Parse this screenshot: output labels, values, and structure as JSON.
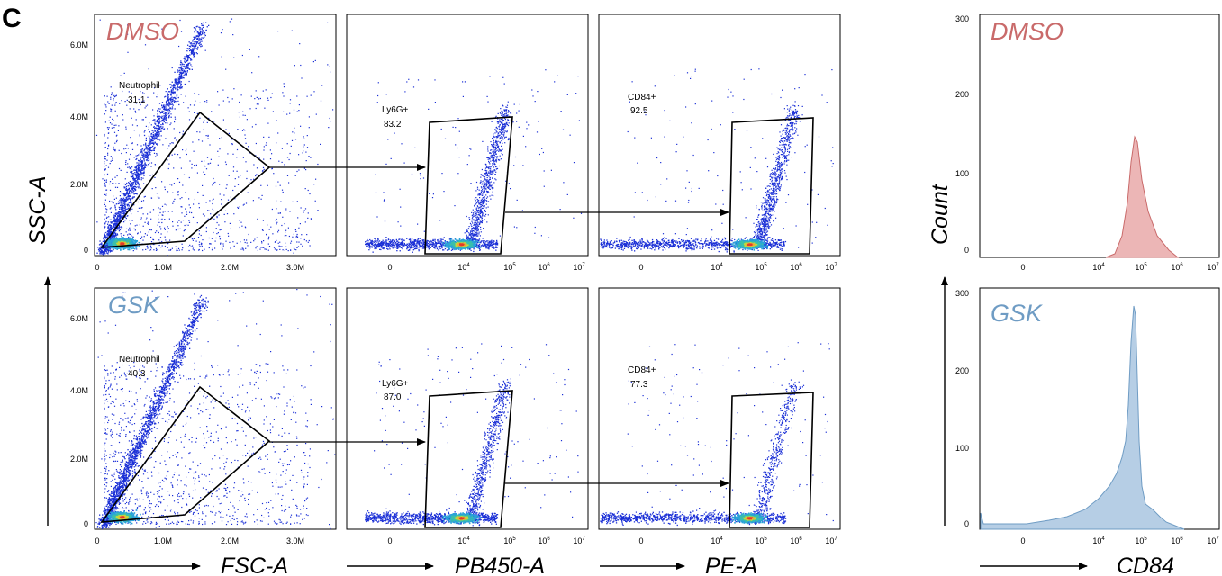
{
  "panel_label": "C",
  "colors": {
    "dmso": "#c96a6a",
    "gsk": "#6f9cc4",
    "dmso_fill": "#e7a4a4",
    "gsk_fill": "#a9c6e0",
    "dot_sparse": "#1a2fd6"
  },
  "rows": [
    {
      "condition": "DMSO",
      "neutrophil_gate": {
        "name": "Neutrophil",
        "value": "31.1"
      },
      "ly6g_gate": {
        "name": "Ly6G+",
        "value": "83.2"
      },
      "cd84_gate": {
        "name": "CD84+",
        "value": "92.5"
      }
    },
    {
      "condition": "GSK",
      "neutrophil_gate": {
        "name": "Neutrophil",
        "value": "40.3"
      },
      "ly6g_gate": {
        "name": "Ly6G+",
        "value": "87.0"
      },
      "cd84_gate": {
        "name": "CD84+",
        "value": "77.3"
      }
    }
  ],
  "axes": {
    "fsc_label": "FSC-A",
    "ssc_label": "SSC-A",
    "pb450_label": "PB450-A",
    "pe_label": "PE-A",
    "count_label": "Count",
    "cd84_label": "CD84",
    "fsc_ticks": [
      "0",
      "1.0M",
      "2.0M",
      "3.0M"
    ],
    "ssc_ticks": [
      "0",
      "2.0M",
      "4.0M",
      "6.0M"
    ],
    "log_ticks": [
      {
        "base": "0",
        "exp": ""
      },
      {
        "base": "10",
        "exp": "4"
      },
      {
        "base": "10",
        "exp": "5"
      },
      {
        "base": "10",
        "exp": "6"
      },
      {
        "base": "10",
        "exp": "7"
      }
    ],
    "count_ticks": [
      "0",
      "100",
      "200",
      "300"
    ]
  },
  "chart_data": [
    {
      "type": "scatter",
      "subtype": "flow-cytometry density plot",
      "panel": "scatter gating (FSC-A vs SSC-A)",
      "xlabel": "FSC-A",
      "ylabel": "SSC-A",
      "xlim": [
        0,
        3500000
      ],
      "ylim": [
        0,
        7000000
      ],
      "series": [
        {
          "name": "DMSO",
          "gate": "Neutrophil",
          "gate_percent": 31.1
        },
        {
          "name": "GSK",
          "gate": "Neutrophil",
          "gate_percent": 40.3
        }
      ]
    },
    {
      "type": "scatter",
      "subtype": "flow-cytometry density plot",
      "panel": "Ly6G gating",
      "xlabel": "PB450-A",
      "x_scale": "log",
      "x_ticks": [
        "0",
        "10^4",
        "10^5",
        "10^6",
        "10^7"
      ],
      "series": [
        {
          "name": "DMSO",
          "gate": "Ly6G+",
          "gate_percent": 83.2
        },
        {
          "name": "GSK",
          "gate": "Ly6G+",
          "gate_percent": 87.0
        }
      ]
    },
    {
      "type": "scatter",
      "subtype": "flow-cytometry density plot",
      "panel": "CD84 gating",
      "xlabel": "PE-A",
      "x_scale": "log",
      "x_ticks": [
        "0",
        "10^4",
        "10^5",
        "10^6",
        "10^7"
      ],
      "series": [
        {
          "name": "DMSO",
          "gate": "CD84+",
          "gate_percent": 92.5
        },
        {
          "name": "GSK",
          "gate": "CD84+",
          "gate_percent": 77.3
        }
      ]
    },
    {
      "type": "area",
      "subtype": "histogram",
      "xlabel": "CD84",
      "ylabel": "Count",
      "x_scale": "log",
      "ylim": [
        0,
        300
      ],
      "series": [
        {
          "name": "DMSO",
          "peak_x": 80000,
          "peak_count": 145,
          "x": [
            20000,
            30000,
            50000,
            70000,
            80000,
            100000,
            150000,
            250000,
            400000,
            700000
          ],
          "y": [
            0,
            15,
            70,
            130,
            145,
            110,
            70,
            40,
            15,
            0
          ]
        },
        {
          "name": "GSK",
          "peak_x": 70000,
          "peak_count": 280,
          "x": [
            2000,
            5000,
            10000,
            20000,
            30000,
            45000,
            55000,
            65000,
            70000,
            80000,
            100000,
            150000,
            250000,
            500000
          ],
          "y": [
            5,
            10,
            20,
            35,
            60,
            90,
            130,
            240,
            280,
            200,
            40,
            15,
            5,
            0
          ]
        }
      ]
    }
  ]
}
